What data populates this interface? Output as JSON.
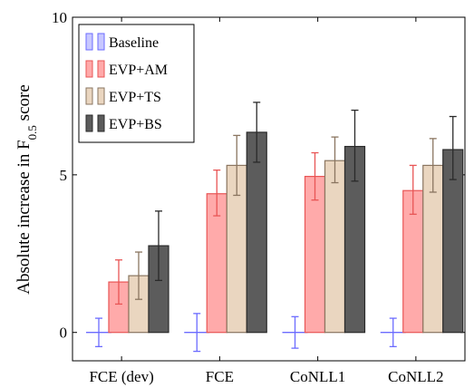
{
  "chart_data": {
    "type": "bar",
    "title": "",
    "xlabel": "",
    "ylabel": "Absolute increase in F",
    "ylabel_sub": "0.5",
    "ylabel_suffix": " score",
    "ylim": [
      -0.9,
      10
    ],
    "yticks": [
      0,
      5,
      10
    ],
    "ytick_labels": [
      "0",
      "5",
      "10"
    ],
    "categories": [
      "FCE (dev)",
      "FCE",
      "CoNLL1",
      "CoNLL2"
    ],
    "legend_position": "top-left",
    "series": [
      {
        "name": "Baseline",
        "color": "#6b6bff",
        "fill": "#c8c8ff",
        "values": [
          0,
          0,
          0,
          0
        ],
        "err_low": [
          -0.45,
          -0.6,
          -0.5,
          -0.45
        ],
        "err_high": [
          0.45,
          0.6,
          0.5,
          0.45
        ]
      },
      {
        "name": "EVP+AM",
        "color": "#e85555",
        "fill": "#ffaaaa",
        "values": [
          1.6,
          4.4,
          4.95,
          4.5
        ],
        "err_low": [
          0.9,
          3.7,
          4.2,
          3.75
        ],
        "err_high": [
          2.3,
          5.15,
          5.7,
          5.3
        ]
      },
      {
        "name": "EVP+TS",
        "color": "#8a7560",
        "fill": "#ead6c0",
        "values": [
          1.8,
          5.3,
          5.45,
          5.3
        ],
        "err_low": [
          1.05,
          4.35,
          4.75,
          4.45
        ],
        "err_high": [
          2.55,
          6.25,
          6.2,
          6.15
        ]
      },
      {
        "name": "EVP+BS",
        "color": "#2a2a2a",
        "fill": "#5c5c5c",
        "values": [
          2.75,
          6.35,
          5.9,
          5.8
        ],
        "err_low": [
          1.65,
          5.4,
          4.8,
          4.85
        ],
        "err_high": [
          3.85,
          7.3,
          7.05,
          6.85
        ]
      }
    ]
  }
}
